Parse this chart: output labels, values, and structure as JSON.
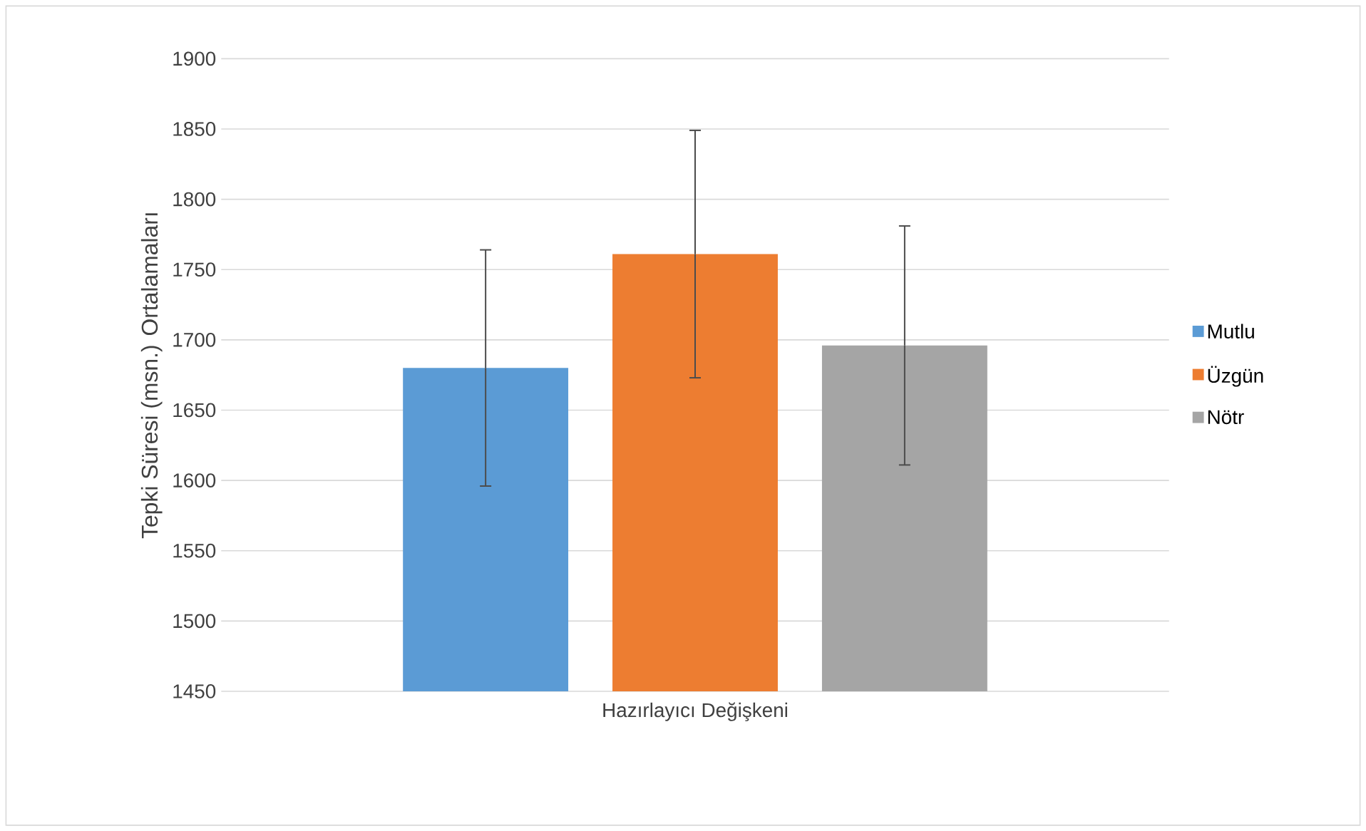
{
  "chart_data": {
    "type": "bar",
    "xlabel": null,
    "ylabel": "Tepki Süresi (msn.) Ortalamaları",
    "categories": [
      "Hazırlayıcı Değişkeni"
    ],
    "series": [
      {
        "name": "Mutlu",
        "color": "#5b9bd5",
        "values": [
          1680
        ],
        "errors": [
          84
        ]
      },
      {
        "name": "Üzgün",
        "color": "#ed7d31",
        "values": [
          1761
        ],
        "errors": [
          88
        ]
      },
      {
        "name": "Nötr",
        "color": "#a5a5a5",
        "values": [
          1696
        ],
        "errors": [
          85
        ]
      }
    ],
    "ylim": [
      1450,
      1900
    ],
    "yticks": [
      1450,
      1500,
      1550,
      1600,
      1650,
      1700,
      1750,
      1800,
      1850,
      1900
    ],
    "grid": "y",
    "legend": "right"
  }
}
